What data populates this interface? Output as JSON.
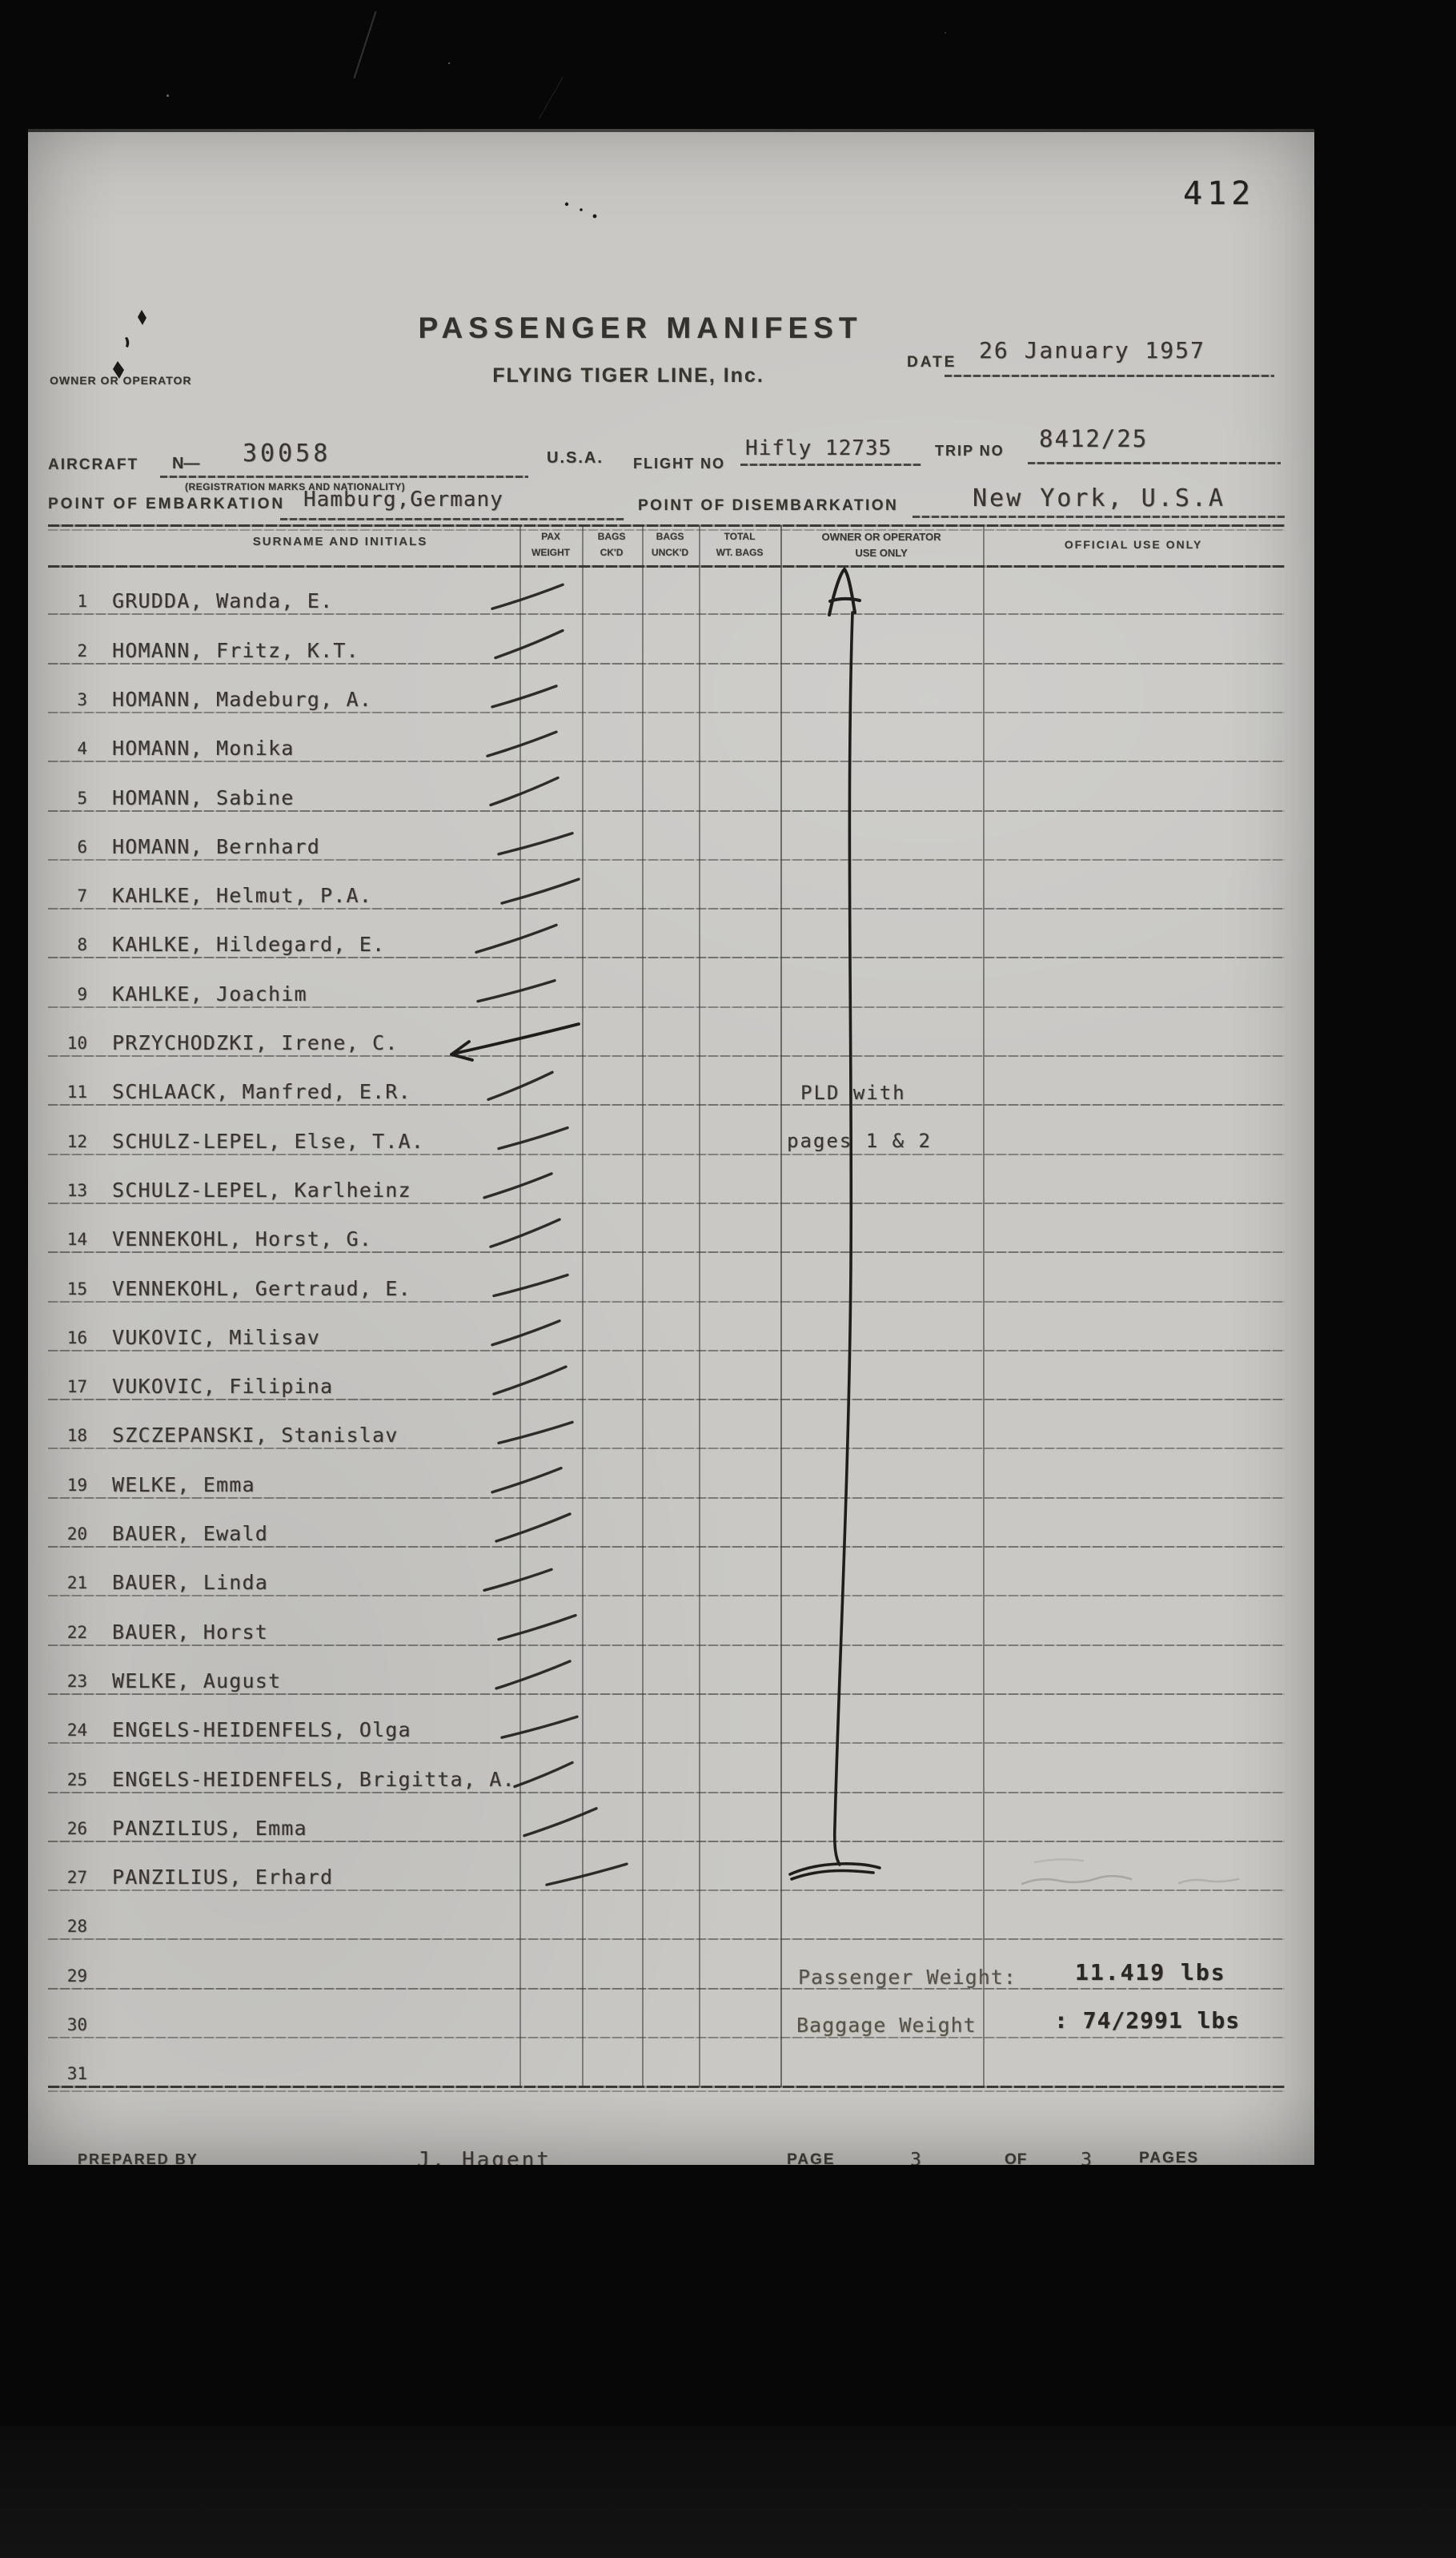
{
  "page_number_stamp": "412",
  "header": {
    "title": "PASSENGER MANIFEST",
    "subtitle": "FLYING TIGER LINE, Inc.",
    "owner_or_operator_label": "OWNER OR OPERATOR",
    "date_label": "DATE",
    "date_value": "26 January 1957",
    "aircraft_label": "AIRCRAFT",
    "aircraft_prefix": "N—",
    "aircraft_value": "30058",
    "registration_note": "(REGISTRATION MARKS AND NATIONALITY)",
    "nationality_value": "U.S.A.",
    "flight_label": "FLIGHT NO",
    "flight_value": "Hifly 12735",
    "trip_label": "TRIP NO",
    "trip_value": "8412/25",
    "embarkation_label": "POINT OF EMBARKATION",
    "embarkation_value": "Hamburg,Germany",
    "disembarkation_label": "POINT OF DISEMBARKATION",
    "disembarkation_value": "New York, U.S.A"
  },
  "table": {
    "col_headers": {
      "surname": "SURNAME AND INITIALS",
      "pax_weight": [
        "PAX",
        "WEIGHT"
      ],
      "bags_ckd": [
        "BAGS",
        "CK'D"
      ],
      "bags_unckd": [
        "BAGS",
        "UNCK'D"
      ],
      "total_wt": [
        "TOTAL",
        "WT. BAGS"
      ],
      "owner": [
        "OWNER OR OPERATOR",
        "USE ONLY"
      ],
      "official": "OFFICIAL USE ONLY"
    },
    "rows": [
      {
        "no": "1",
        "name": "GRUDDA, Wanda, E.",
        "tick": true
      },
      {
        "no": "2",
        "name": "HOMANN, Fritz, K.T.",
        "tick": true
      },
      {
        "no": "3",
        "name": "HOMANN, Madeburg, A.",
        "tick": true
      },
      {
        "no": "4",
        "name": "HOMANN, Monika",
        "tick": true
      },
      {
        "no": "5",
        "name": "HOMANN, Sabine",
        "tick": true
      },
      {
        "no": "6",
        "name": "HOMANN, Bernhard",
        "tick": true
      },
      {
        "no": "7",
        "name": "KAHLKE, Helmut, P.A.",
        "tick": true
      },
      {
        "no": "8",
        "name": "KAHLKE, Hildegard, E.",
        "tick": true
      },
      {
        "no": "9",
        "name": "KAHLKE, Joachim",
        "tick": true
      },
      {
        "no": "10",
        "name": "PRZYCHODZKI, Irene, C.",
        "tick": false
      },
      {
        "no": "11",
        "name": "SCHLAACK, Manfred, E.R.",
        "tick": true
      },
      {
        "no": "12",
        "name": "SCHULZ-LEPEL, Else, T.A.",
        "tick": true
      },
      {
        "no": "13",
        "name": "SCHULZ-LEPEL, Karlheinz",
        "tick": true
      },
      {
        "no": "14",
        "name": "VENNEKOHL, Horst, G.",
        "tick": true
      },
      {
        "no": "15",
        "name": "VENNEKOHL, Gertraud, E.",
        "tick": true
      },
      {
        "no": "16",
        "name": "VUKOVIC, Milisav",
        "tick": true
      },
      {
        "no": "17",
        "name": "VUKOVIC, Filipina",
        "tick": true
      },
      {
        "no": "18",
        "name": "SZCZEPANSKI, Stanislav",
        "tick": true
      },
      {
        "no": "19",
        "name": "WELKE, Emma",
        "tick": true
      },
      {
        "no": "20",
        "name": "BAUER, Ewald",
        "tick": true
      },
      {
        "no": "21",
        "name": "BAUER, Linda",
        "tick": true
      },
      {
        "no": "22",
        "name": "BAUER, Horst",
        "tick": true
      },
      {
        "no": "23",
        "name": "WELKE, August",
        "tick": true
      },
      {
        "no": "24",
        "name": "ENGELS-HEIDENFELS, Olga",
        "tick": true
      },
      {
        "no": "25",
        "name": "ENGELS-HEIDENFELS, Brigitta, A.",
        "tick": true
      },
      {
        "no": "26",
        "name": "PANZILIUS, Emma",
        "tick": true
      },
      {
        "no": "27",
        "name": "PANZILIUS, Erhard",
        "tick": true
      },
      {
        "no": "28",
        "name": "",
        "tick": false
      },
      {
        "no": "29",
        "name": "",
        "tick": false
      },
      {
        "no": "30",
        "name": "",
        "tick": false
      },
      {
        "no": "31",
        "name": "",
        "tick": false
      }
    ],
    "handwritten": {
      "owner_column_letter": "A",
      "note_line1": "PLD with",
      "note_line2": "pages 1 & 2"
    },
    "totals": {
      "passenger_weight_label": "Passenger Weight:",
      "passenger_weight_value": "11.419 lbs",
      "baggage_weight_label": "Baggage Weight",
      "baggage_weight_value": ": 74/2991 lbs"
    }
  },
  "footer": {
    "prepared_by_label": "PREPARED BY",
    "prepared_by_value": "J. Hagent",
    "page_label": "PAGE",
    "page_value": "3",
    "of_label": "OF",
    "total_pages_value": "3",
    "pages_label": "PAGES"
  },
  "colors": {
    "paper": "#c9c8c5",
    "printed_ink": "#38352f",
    "typed_ink": "#3a3531",
    "handwriting_ink": "#201e1c",
    "pencil": "#908d85",
    "background": "#070707"
  }
}
